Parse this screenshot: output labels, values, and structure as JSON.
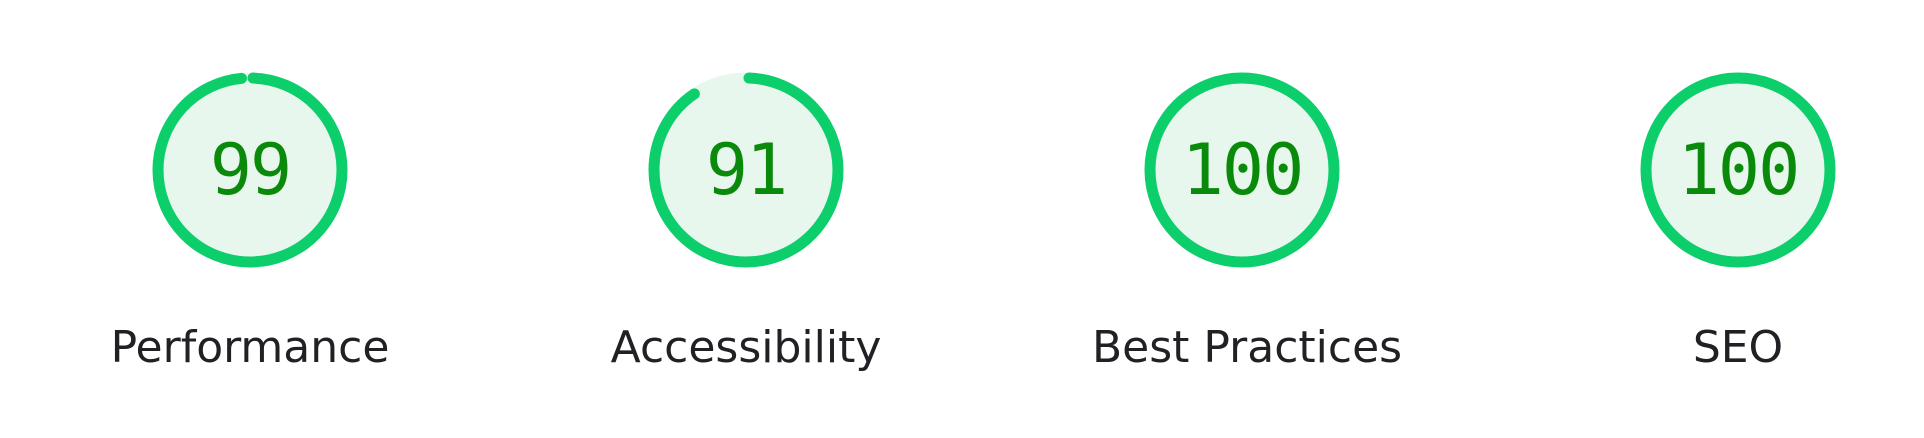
{
  "colors": {
    "pass": "#0cce6b",
    "pass_text": "#0a8a0a",
    "pass_fill": "#e8f7ed",
    "label_text": "#202124"
  },
  "gauges": [
    {
      "label": "Performance",
      "score": "99",
      "fraction": 0.99
    },
    {
      "label": "Accessibility",
      "score": "91",
      "fraction": 0.91
    },
    {
      "label": "Best Practices",
      "score": "100",
      "fraction": 1.0
    },
    {
      "label": "SEO",
      "score": "100",
      "fraction": 1.0
    }
  ]
}
